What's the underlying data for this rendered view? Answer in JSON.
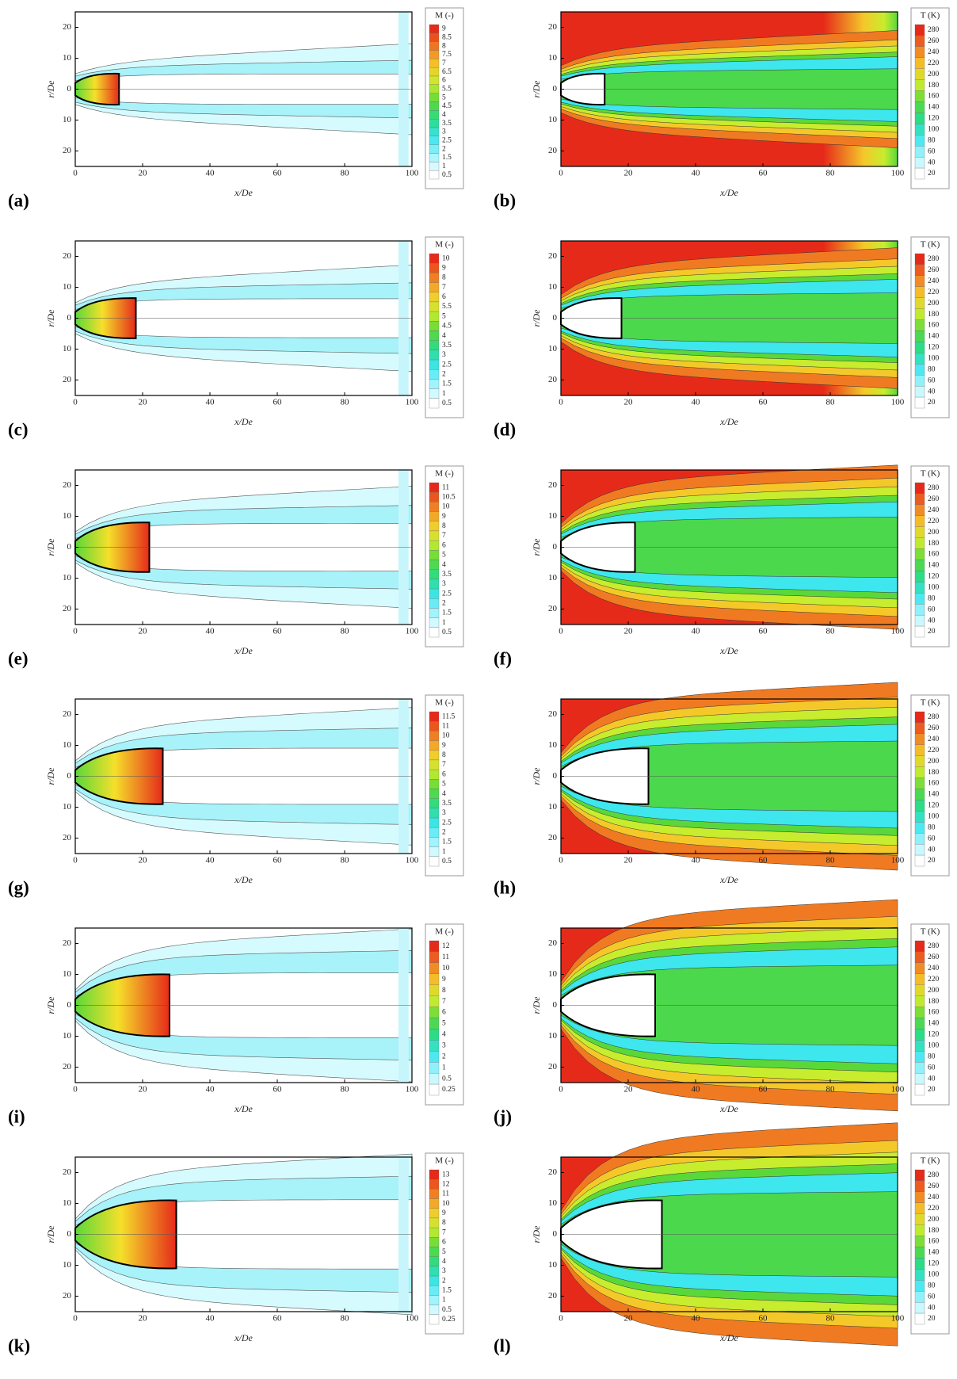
{
  "axes": {
    "xticks": [
      0,
      20,
      40,
      60,
      80,
      100
    ],
    "yticks": [
      "20",
      "10",
      "0",
      "10",
      "20"
    ],
    "xlabel": "x/De",
    "ylabel": "r/De"
  },
  "panels": [
    {
      "label": "(a)",
      "colorbar_title": "M (-)",
      "levels": [
        9,
        8.5,
        8,
        7.5,
        7,
        6.5,
        6,
        5.5,
        5,
        4.5,
        4,
        3.5,
        3,
        2.5,
        2,
        1.5,
        1,
        0.5
      ]
    },
    {
      "label": "(b)",
      "colorbar_title": "T (K)",
      "levels": [
        280,
        260,
        240,
        220,
        200,
        180,
        160,
        140,
        120,
        100,
        80,
        60,
        40,
        20
      ]
    },
    {
      "label": "(c)",
      "colorbar_title": "M (-)",
      "levels": [
        10,
        9,
        8,
        7,
        6,
        5.5,
        5,
        4.5,
        4,
        3.5,
        3,
        2.5,
        2,
        1.5,
        1,
        0.5
      ]
    },
    {
      "label": "(d)",
      "colorbar_title": "T (K)",
      "levels": [
        280,
        260,
        240,
        220,
        200,
        180,
        160,
        140,
        120,
        100,
        80,
        60,
        40,
        20
      ]
    },
    {
      "label": "(e)",
      "colorbar_title": "M (-)",
      "levels": [
        11,
        10.5,
        10,
        9,
        8,
        7,
        6,
        5,
        4,
        3.5,
        3,
        2.5,
        2,
        1.5,
        1,
        0.5
      ]
    },
    {
      "label": "(f)",
      "colorbar_title": "T (K)",
      "levels": [
        280,
        260,
        240,
        220,
        200,
        180,
        160,
        140,
        120,
        100,
        80,
        60,
        40,
        20
      ]
    },
    {
      "label": "(g)",
      "colorbar_title": "M (-)",
      "levels": [
        11.5,
        11,
        10,
        9,
        8,
        7,
        6,
        5,
        4,
        3.5,
        3,
        2.5,
        2,
        1.5,
        1,
        0.5
      ]
    },
    {
      "label": "(h)",
      "colorbar_title": "T (K)",
      "levels": [
        280,
        260,
        240,
        220,
        200,
        180,
        160,
        140,
        120,
        100,
        80,
        60,
        40,
        20
      ]
    },
    {
      "label": "(i)",
      "colorbar_title": "M (-)",
      "levels": [
        12,
        11,
        10,
        9,
        8,
        7,
        6,
        5,
        4,
        3,
        2,
        1,
        0.5,
        0.25
      ]
    },
    {
      "label": "(j)",
      "colorbar_title": "T (K)",
      "levels": [
        280,
        260,
        240,
        220,
        200,
        180,
        160,
        140,
        120,
        100,
        80,
        60,
        40,
        20
      ]
    },
    {
      "label": "(k)",
      "colorbar_title": "M (-)",
      "levels": [
        13,
        12,
        11,
        10,
        9,
        8,
        7,
        6,
        5,
        4,
        3,
        2,
        1.5,
        1,
        0.5,
        0.25
      ]
    },
    {
      "label": "(l)",
      "colorbar_title": "T (K)",
      "levels": [
        280,
        260,
        240,
        220,
        200,
        180,
        160,
        140,
        120,
        100,
        80,
        60,
        40,
        20
      ]
    }
  ]
}
